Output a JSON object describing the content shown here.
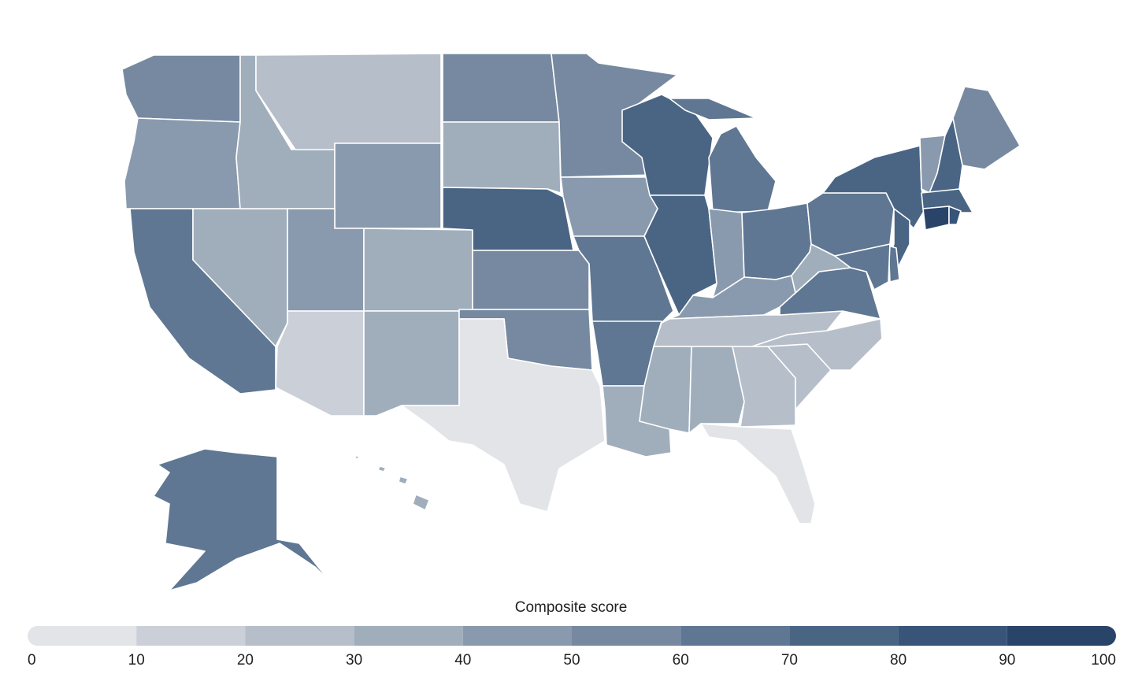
{
  "chart_data": {
    "type": "choropleth",
    "legend_title": "Composite score",
    "values": [
      55,
      45,
      65,
      35,
      38,
      25,
      45,
      45,
      15,
      35,
      35,
      55,
      35,
      75,
      55,
      55,
      8,
      55,
      45,
      65,
      62,
      32,
      75,
      75,
      62,
      45,
      62,
      45,
      22,
      38,
      35,
      25,
      5,
      25,
      25,
      65,
      38,
      62,
      78,
      45,
      72,
      55,
      72,
      92,
      85,
      78,
      65,
      62,
      62,
      35
    ],
    "colors": [
      "#e2e4e8",
      "#cbd0d8",
      "#b6bec9",
      "#a0aebc",
      "#8a9aae",
      "#7689a0",
      "#5f7792",
      "#4a6584",
      "#385478",
      "#2a4469"
    ],
    "clim": [
      0,
      100
    ],
    "ticks": [
      0,
      10,
      20,
      30,
      40,
      50,
      60,
      70,
      80,
      90,
      100
    ]
  }
}
